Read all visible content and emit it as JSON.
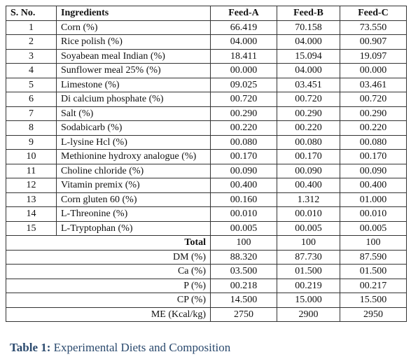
{
  "table": {
    "header": [
      "S. No.",
      "Ingredients",
      "Feed-A",
      "Feed-B",
      "Feed-C"
    ],
    "rows": [
      [
        "1",
        "Corn (%)",
        "66.419",
        "70.158",
        "73.550"
      ],
      [
        "2",
        "Rice polish (%)",
        "04.000",
        "04.000",
        "00.907"
      ],
      [
        "3",
        "Soyabean meal Indian (%)",
        "18.411",
        "15.094",
        "19.097"
      ],
      [
        "4",
        "Sunflower meal 25% (%)",
        "00.000",
        "04.000",
        "00.000"
      ],
      [
        "5",
        "Limestone (%)",
        "09.025",
        "03.451",
        "03.461"
      ],
      [
        "6",
        "Di calcium phosphate (%)",
        "00.720",
        "00.720",
        "00.720"
      ],
      [
        "7",
        "Salt (%)",
        "00.290",
        "00.290",
        "00.290"
      ],
      [
        "8",
        "Sodabicarb (%)",
        "00.220",
        "00.220",
        "00.220"
      ],
      [
        "9",
        "L-lysine Hcl (%)",
        "00.080",
        "00.080",
        "00.080"
      ],
      [
        "10",
        "Methionine hydroxy analogue (%)",
        "00.170",
        "00.170",
        "00.170"
      ],
      [
        "11",
        "Choline chloride (%)",
        "00.090",
        "00.090",
        "00.090"
      ],
      [
        "12",
        "Vitamin premix (%)",
        "00.400",
        "00.400",
        "00.400"
      ],
      [
        "13",
        "Corn gluten 60 (%)",
        "00.160",
        "1.312",
        "01.000"
      ],
      [
        "14",
        "L-Threonine (%)",
        "00.010",
        "00.010",
        "00.010"
      ],
      [
        "15",
        "L-Tryptophan (%)",
        "00.005",
        "00.005",
        "00.005"
      ]
    ],
    "summary": [
      [
        "Total",
        "100",
        "100",
        "100"
      ],
      [
        "DM (%)",
        "88.320",
        "87.730",
        "87.590"
      ],
      [
        "Ca (%)",
        "03.500",
        "01.500",
        "01.500"
      ],
      [
        "P (%)",
        "00.218",
        "00.219",
        "00.217"
      ],
      [
        "CP (%)",
        "14.500",
        "15.000",
        "15.500"
      ],
      [
        "ME (Kcal/kg)",
        "2750",
        "2900",
        "2950"
      ]
    ]
  },
  "caption": {
    "label": "Table 1:",
    "text": "Experimental Diets and Composition"
  }
}
